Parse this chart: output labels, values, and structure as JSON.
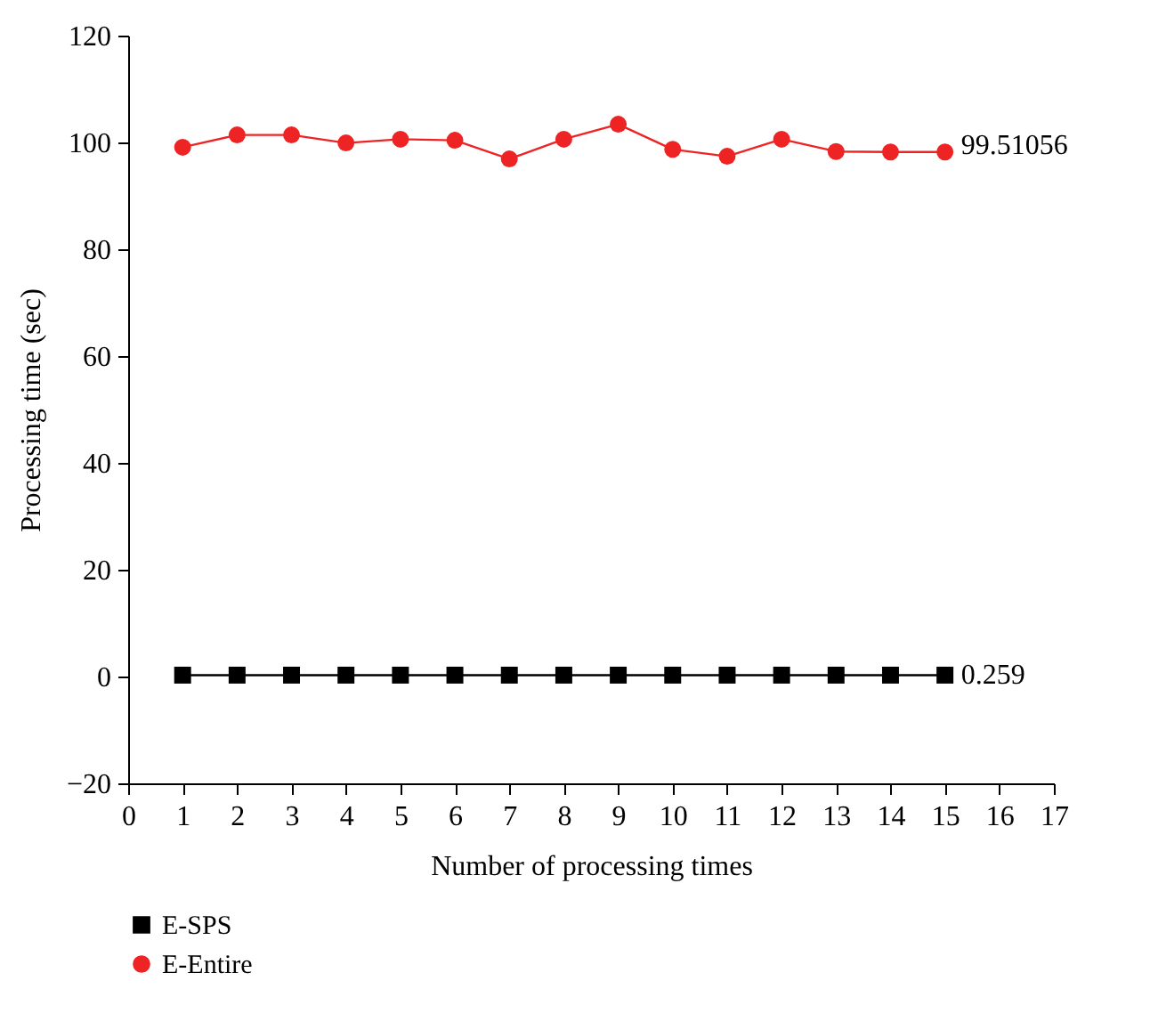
{
  "chart_data": {
    "type": "line",
    "xlabel": "Number of processing times",
    "ylabel": "Processing time (sec)",
    "x": [
      1,
      2,
      3,
      4,
      5,
      6,
      7,
      8,
      9,
      10,
      11,
      12,
      13,
      14,
      15
    ],
    "series": [
      {
        "name": "E-SPS",
        "color": "#000000",
        "marker": "square",
        "values": [
          0.259,
          0.259,
          0.259,
          0.259,
          0.259,
          0.259,
          0.259,
          0.259,
          0.259,
          0.259,
          0.259,
          0.259,
          0.259,
          0.259,
          0.259
        ]
      },
      {
        "name": "E-Entire",
        "color": "#ee2424",
        "marker": "circle",
        "values": [
          99.1,
          101.4,
          101.4,
          99.9,
          100.6,
          100.4,
          96.9,
          100.6,
          103.4,
          98.7,
          97.4,
          100.6,
          98.3,
          98.2,
          98.2
        ]
      }
    ],
    "annotations": [
      {
        "text": "99.51056",
        "x": 15,
        "y": 99.51056
      },
      {
        "text": "0.259",
        "x": 15,
        "y": 0.259
      }
    ],
    "xlim": [
      0,
      17
    ],
    "xticks": [
      0,
      1,
      2,
      3,
      4,
      5,
      6,
      7,
      8,
      9,
      10,
      11,
      12,
      13,
      14,
      15,
      16,
      17
    ],
    "ylim": [
      -20,
      120
    ],
    "yticks": [
      -20,
      0,
      20,
      40,
      60,
      80,
      100,
      120
    ],
    "grid": false,
    "legend": "bottom left",
    "line_style": "solid"
  }
}
